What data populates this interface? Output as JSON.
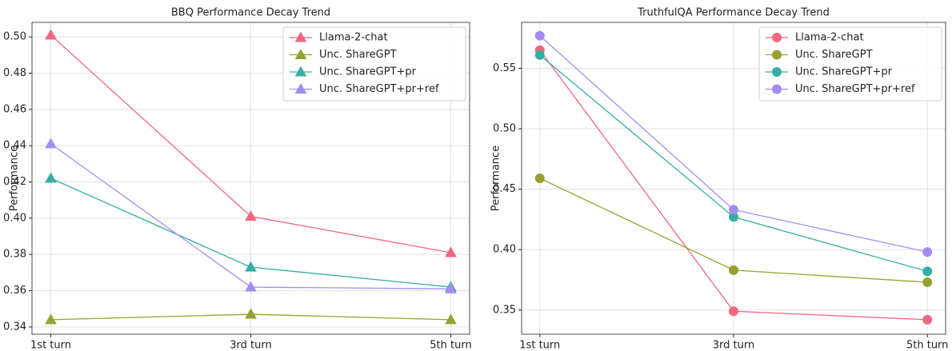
{
  "chart_data": [
    {
      "type": "line",
      "title": "BBQ Performance Decay Trend",
      "y_label": "Performance",
      "categories": [
        "1st turn",
        "3rd turn",
        "5th turn"
      ],
      "marker": "triangle",
      "grid": true,
      "legend": "upper right",
      "ylim": [
        0.336,
        0.508
      ],
      "yticks": [
        0.34,
        0.36,
        0.38,
        {
          "value": 0.4,
          "label": "0.40"
        },
        0.42,
        0.44,
        0.46,
        0.48,
        {
          "value": 0.5,
          "label": "0.50"
        }
      ],
      "series": [
        {
          "name": "Llama-2-chat",
          "color": "#f0677f",
          "values": [
            0.501,
            0.401,
            0.381
          ]
        },
        {
          "name": "Unc. ShareGPT",
          "color": "#98a130",
          "values": [
            0.344,
            0.347,
            0.344
          ]
        },
        {
          "name": "Unc. ShareGPT+pr",
          "color": "#36ada4",
          "values": [
            0.422,
            0.373,
            0.362
          ]
        },
        {
          "name": "Unc. ShareGPT+pr+ref",
          "color": "#a48cf4",
          "values": [
            0.441,
            0.362,
            0.361
          ]
        }
      ]
    },
    {
      "type": "line",
      "title": "TruthfulQA Performance Decay Trend",
      "y_label": "Performance",
      "categories": [
        "1st turn",
        "3rd turn",
        "5th turn"
      ],
      "marker": "circle",
      "grid": true,
      "legend": "upper right",
      "ylim": [
        0.33,
        0.588
      ],
      "yticks": [
        0.35,
        {
          "value": 0.4,
          "label": "0.40"
        },
        0.45,
        {
          "value": 0.5,
          "label": "0.50"
        },
        0.55
      ],
      "series": [
        {
          "name": "Llama-2-chat",
          "color": "#f0677f",
          "values": [
            0.565,
            0.349,
            0.342
          ]
        },
        {
          "name": "Unc. ShareGPT",
          "color": "#98a130",
          "values": [
            0.459,
            0.383,
            0.373
          ]
        },
        {
          "name": "Unc. ShareGPT+pr",
          "color": "#36ada4",
          "values": [
            0.561,
            0.427,
            0.382
          ]
        },
        {
          "name": "Unc. ShareGPT+pr+ref",
          "color": "#a48cf4",
          "values": [
            0.577,
            0.433,
            0.398
          ]
        }
      ]
    }
  ]
}
